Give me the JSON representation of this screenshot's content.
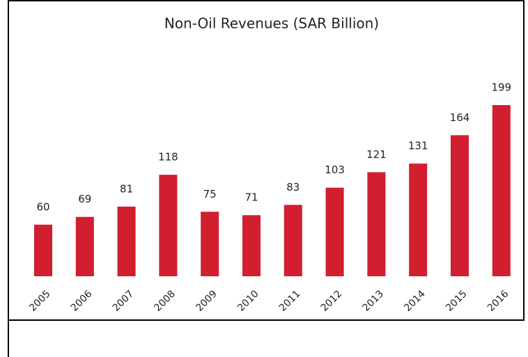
{
  "chart_data": {
    "type": "bar",
    "title": "Non-Oil Revenues (SAR Billion)",
    "categories": [
      "2005",
      "2006",
      "2007",
      "2008",
      "2009",
      "2010",
      "2011",
      "2012",
      "2013",
      "2014",
      "2015",
      "2016"
    ],
    "values": [
      60,
      69,
      81,
      118,
      75,
      71,
      83,
      103,
      121,
      131,
      164,
      199
    ],
    "color": "#d11f2f"
  }
}
